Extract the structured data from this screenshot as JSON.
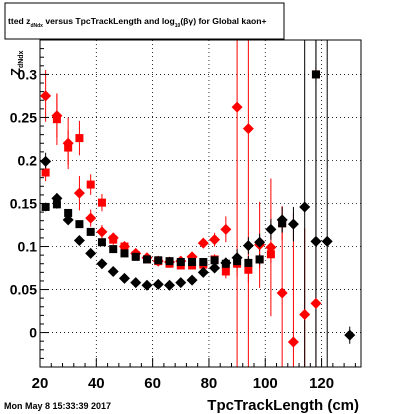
{
  "chart_data": {
    "type": "scatter",
    "title": {
      "prefix": "tted  z",
      "sub1": "dNdx",
      "middle": " versus TpcTrackLength and log",
      "sub2": "10",
      "suffix": "(βγ) for Global kaon+"
    },
    "ylabel_main": "Z",
    "ylabel_sub": "dNdx",
    "xlabel": "TpcTrackLength (cm)",
    "footer": "Mon May  8 15:33:39 2017",
    "x_range": [
      20,
      134
    ],
    "y_range": [
      -0.04,
      0.34
    ],
    "x_ticks": [
      20,
      40,
      60,
      80,
      100,
      120
    ],
    "y_ticks": [
      "0",
      "0.05",
      "0.1",
      "0.15",
      "0.2",
      "0.25",
      "0.3"
    ],
    "y_tick_values": [
      0,
      0.05,
      0.1,
      0.15,
      0.2,
      0.25,
      0.3
    ],
    "grid": true,
    "colors": {
      "red": "#ff0000",
      "black": "#000000"
    },
    "series": [
      {
        "marker": "square",
        "color": "#ff0000",
        "points": [
          [
            22,
            0.186,
            0.01
          ],
          [
            26,
            0.248,
            0.03
          ],
          [
            30,
            0.215,
            0.02
          ],
          [
            34,
            0.226,
            0.02
          ],
          [
            38,
            0.172,
            0.012
          ],
          [
            42,
            0.151,
            0.01
          ],
          [
            46,
            0.108,
            0.006
          ],
          [
            50,
            0.1,
            0.005
          ],
          [
            54,
            0.09,
            0.004
          ],
          [
            58,
            0.085,
            0.004
          ],
          [
            62,
            0.083,
            0.004
          ],
          [
            66,
            0.08,
            0.004
          ],
          [
            70,
            0.078,
            0.004
          ],
          [
            74,
            0.078,
            0.004
          ],
          [
            78,
            0.079,
            0.004
          ],
          [
            82,
            0.085,
            0.006
          ],
          [
            86,
            0.071,
            0.008
          ],
          [
            90,
            0.08,
            0.015
          ],
          [
            94,
            0.073,
            0.015
          ],
          [
            98,
            0.085,
            0.01
          ],
          [
            102,
            0.091,
            0.01
          ],
          [
            106,
            0.127,
            0.02
          ],
          [
            118,
            0.3,
            0.01
          ]
        ]
      },
      {
        "marker": "diamond",
        "color": "#ff0000",
        "points": [
          [
            22,
            0.275,
            0.03
          ],
          [
            26,
            0.252,
            0.025
          ],
          [
            30,
            0.22,
            0.03
          ],
          [
            34,
            0.162,
            0.02
          ],
          [
            38,
            0.133,
            0.01
          ],
          [
            42,
            0.117,
            0.008
          ],
          [
            46,
            0.11,
            0.006
          ],
          [
            50,
            0.1,
            0.005
          ],
          [
            54,
            0.092,
            0.004
          ],
          [
            58,
            0.087,
            0.004
          ],
          [
            62,
            0.083,
            0.004
          ],
          [
            66,
            0.082,
            0.004
          ],
          [
            70,
            0.083,
            0.004
          ],
          [
            74,
            0.088,
            0.005
          ],
          [
            78,
            0.104,
            0.006
          ],
          [
            82,
            0.108,
            0.008
          ],
          [
            86,
            0.12,
            0.015
          ],
          [
            90,
            0.262,
            0.4
          ],
          [
            94,
            0.237,
            0.35
          ],
          [
            98,
            0.102,
            0.05
          ],
          [
            102,
            0.099,
            0.08
          ],
          [
            106,
            0.046,
            0.1
          ],
          [
            110,
            -0.011,
            0.15
          ],
          [
            114,
            0.021,
            0.1
          ],
          [
            118,
            0.034,
            0.08
          ]
        ]
      },
      {
        "marker": "square",
        "color": "#000000",
        "points": [
          [
            22,
            0.146,
            0.005
          ],
          [
            26,
            0.149,
            0.005
          ],
          [
            30,
            0.139,
            0.004
          ],
          [
            34,
            0.126,
            0.004
          ],
          [
            38,
            0.117,
            0.004
          ],
          [
            42,
            0.105,
            0.003
          ],
          [
            46,
            0.097,
            0.003
          ],
          [
            50,
            0.092,
            0.003
          ],
          [
            54,
            0.088,
            0.003
          ],
          [
            58,
            0.085,
            0.003
          ],
          [
            62,
            0.084,
            0.003
          ],
          [
            66,
            0.083,
            0.003
          ],
          [
            70,
            0.082,
            0.003
          ],
          [
            74,
            0.082,
            0.003
          ],
          [
            78,
            0.082,
            0.003
          ],
          [
            82,
            0.084,
            0.004
          ],
          [
            86,
            0.08,
            0.005
          ],
          [
            90,
            0.083,
            0.008
          ],
          [
            94,
            0.081,
            0.008
          ],
          [
            98,
            0.085,
            0.006
          ],
          [
            106,
            0.127,
            0.01
          ],
          [
            118,
            0.3,
            0.4
          ]
        ]
      },
      {
        "marker": "diamond",
        "color": "#000000",
        "points": [
          [
            22,
            0.199,
            0.01
          ],
          [
            26,
            0.156,
            0.006
          ],
          [
            30,
            0.131,
            0.004
          ],
          [
            34,
            0.107,
            0.003
          ],
          [
            38,
            0.092,
            0.003
          ],
          [
            42,
            0.08,
            0.003
          ],
          [
            46,
            0.071,
            0.002
          ],
          [
            50,
            0.063,
            0.002
          ],
          [
            54,
            0.058,
            0.002
          ],
          [
            58,
            0.055,
            0.002
          ],
          [
            62,
            0.056,
            0.002
          ],
          [
            66,
            0.055,
            0.002
          ],
          [
            70,
            0.058,
            0.002
          ],
          [
            74,
            0.061,
            0.003
          ],
          [
            78,
            0.07,
            0.003
          ],
          [
            82,
            0.075,
            0.004
          ],
          [
            86,
            0.081,
            0.006
          ],
          [
            90,
            0.087,
            0.01
          ],
          [
            94,
            0.101,
            0.01
          ],
          [
            98,
            0.105,
            0.01
          ],
          [
            102,
            0.12,
            0.012
          ],
          [
            106,
            0.131,
            0.015
          ],
          [
            110,
            0.126,
            0.02
          ],
          [
            114,
            0.146,
            0.2
          ],
          [
            118,
            0.106,
            0.4
          ],
          [
            122,
            0.106,
            0.4
          ],
          [
            130,
            -0.003,
            0.01
          ]
        ]
      }
    ]
  }
}
